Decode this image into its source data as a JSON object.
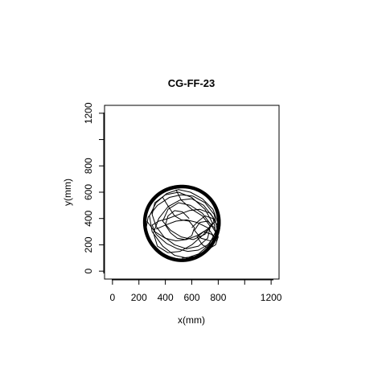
{
  "chart_data": {
    "type": "line",
    "title": "CG-FF-23",
    "xlabel": "x(mm)",
    "ylabel": "y(mm)",
    "xlim": [
      -60,
      1260
    ],
    "ylim": [
      -60,
      1260
    ],
    "x_ticks": [
      0,
      200,
      400,
      600,
      800,
      1000,
      1200
    ],
    "x_tick_labels": [
      "0",
      "200",
      "400",
      "600",
      "800",
      "",
      "1200"
    ],
    "y_ticks": [
      0,
      200,
      400,
      600,
      800,
      1000,
      1200
    ],
    "y_tick_labels": [
      "0",
      "200",
      "400",
      "600",
      "800",
      "",
      "1200"
    ],
    "grid": false,
    "line_color": "#000000",
    "arena": {
      "center_x": 525,
      "center_y": 365,
      "radius": 290
    },
    "series": [
      {
        "x": [
          525,
          620,
          700,
          760,
          790,
          770,
          700,
          610,
          520,
          430,
          340,
          270,
          250,
          290,
          360,
          450,
          540,
          630,
          720,
          790,
          800,
          760,
          680,
          590,
          500,
          410,
          330,
          280,
          300,
          380,
          470,
          560,
          650,
          730,
          780,
          760,
          690,
          600,
          510,
          420,
          350,
          310,
          340,
          420,
          510,
          600,
          690,
          760
        ],
        "y": [
          100,
          110,
          150,
          220,
          320,
          430,
          520,
          570,
          580,
          560,
          500,
          410,
          300,
          200,
          130,
          95,
          90,
          110,
          160,
          250,
          360,
          470,
          550,
          600,
          620,
          590,
          520,
          420,
          300,
          190,
          120,
          100,
          130,
          200,
          300,
          410,
          500,
          550,
          540,
          490,
          400,
          290,
          190,
          140,
          150,
          200,
          280,
          370
        ]
      },
      {
        "x": [
          480,
          520,
          600,
          680,
          740,
          720,
          650,
          560,
          470,
          390,
          330,
          300,
          320,
          400,
          500,
          600,
          700,
          760,
          700,
          610,
          520,
          440,
          380,
          420,
          500,
          590,
          680,
          740,
          790,
          760
        ],
        "y": [
          620,
          540,
          470,
          420,
          340,
          250,
          190,
          170,
          200,
          260,
          340,
          430,
          520,
          580,
          600,
          560,
          470,
          360,
          280,
          240,
          260,
          310,
          380,
          470,
          520,
          500,
          440,
          360,
          280,
          200
        ]
      },
      {
        "x": [
          260,
          320,
          400,
          480,
          560,
          640,
          720,
          780,
          740,
          660,
          580,
          500,
          420,
          350,
          300,
          330,
          410,
          490,
          570,
          650,
          720,
          770,
          720,
          640,
          560,
          480,
          400,
          330
        ],
        "y": [
          380,
          300,
          250,
          230,
          240,
          270,
          320,
          380,
          440,
          470,
          460,
          430,
          400,
          380,
          350,
          280,
          210,
          170,
          150,
          160,
          200,
          260,
          330,
          370,
          390,
          380,
          350,
          320
        ]
      },
      {
        "x": [
          600,
          650,
          700,
          760,
          800,
          790,
          740,
          670,
          620,
          660,
          720,
          770,
          800,
          780,
          730,
          680,
          640,
          690,
          750,
          790
        ],
        "y": [
          330,
          380,
          420,
          400,
          340,
          270,
          230,
          250,
          310,
          370,
          380,
          330,
          260,
          200,
          170,
          200,
          260,
          300,
          280,
          230
        ]
      },
      {
        "x": [
          380,
          430,
          470,
          520,
          580,
          620,
          600,
          550,
          490,
          440,
          400,
          420,
          470,
          530,
          580
        ],
        "y": [
          560,
          480,
          420,
          390,
          380,
          330,
          270,
          240,
          250,
          290,
          350,
          420,
          460,
          450,
          400
        ]
      }
    ]
  }
}
